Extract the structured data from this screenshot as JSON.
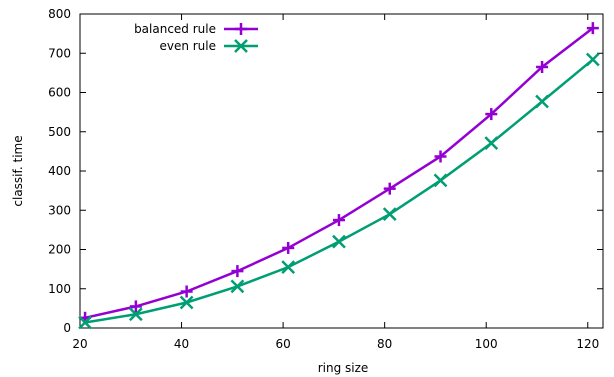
{
  "chart_data": {
    "type": "line",
    "xlabel": "ring size",
    "ylabel": "classif. time",
    "xlim": [
      20,
      123
    ],
    "ylim": [
      0,
      800
    ],
    "xticks": [
      20,
      40,
      60,
      80,
      100,
      120
    ],
    "yticks": [
      0,
      100,
      200,
      300,
      400,
      500,
      600,
      700,
      800
    ],
    "grid": false,
    "legend_position": "top-left",
    "series": [
      {
        "name": "balanced rule",
        "color": "#9400d3",
        "marker": "plus",
        "x": [
          21,
          31,
          41,
          51,
          61,
          71,
          81,
          91,
          101,
          111,
          121
        ],
        "y": [
          26,
          55,
          93,
          145,
          204,
          275,
          355,
          437,
          545,
          665,
          764
        ]
      },
      {
        "name": "even rule",
        "color": "#009e73",
        "marker": "cross",
        "x": [
          21,
          31,
          41,
          51,
          61,
          71,
          81,
          91,
          101,
          111,
          121
        ],
        "y": [
          14,
          35,
          65,
          106,
          155,
          220,
          290,
          376,
          471,
          577,
          684
        ]
      }
    ]
  }
}
